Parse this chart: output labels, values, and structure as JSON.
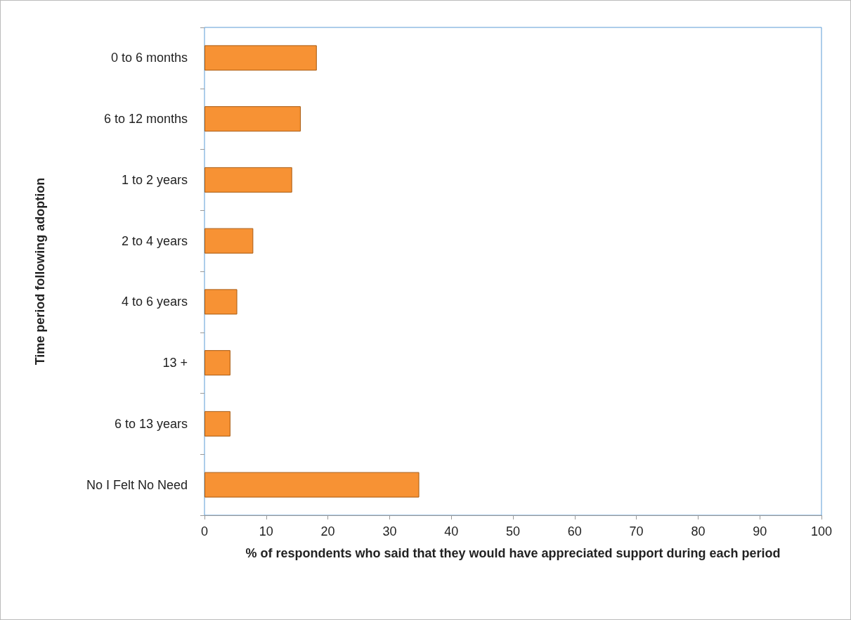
{
  "chart_data": {
    "type": "bar",
    "orientation": "horizontal",
    "categories": [
      "0 to 6 months",
      "6 to 12 months",
      "1 to 2 years",
      "2 to 4 years",
      "4 to 6 years",
      "13 +",
      "6 to 13 years",
      "No I Felt No Need"
    ],
    "values": [
      18.2,
      15.6,
      14.2,
      7.9,
      5.3,
      4.2,
      4.2,
      34.8
    ],
    "color": "#f79234",
    "xlim": [
      0,
      100
    ],
    "xticks": [
      0,
      10,
      20,
      30,
      40,
      50,
      60,
      70,
      80,
      90,
      100
    ],
    "xlabel": "% of respondents who said that they would have appreciated support during each period",
    "ylabel": "Time period following adoption",
    "data_labels": false
  }
}
